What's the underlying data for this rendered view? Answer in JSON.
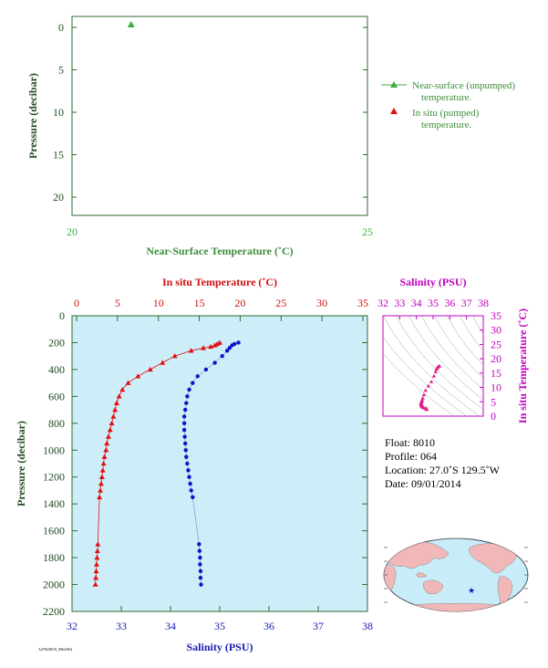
{
  "chart_data": [
    {
      "type": "scatter",
      "name_id": "near-surface",
      "xlabel": "Near-Surface Temperature (˚C)",
      "ylabel": "Pressure (decibar)",
      "xlim": [
        20,
        25
      ],
      "ylim": [
        0,
        22
      ],
      "xticks": [
        20,
        25
      ],
      "yticks": [
        0,
        5,
        10,
        15,
        20
      ],
      "series": [
        {
          "name": "Near-surface (unpumped)\ntemperature.",
          "color": "#3faf3f",
          "marker": "triangle",
          "points": [
            {
              "x": 21.0,
              "y": 0
            }
          ]
        }
      ]
    },
    {
      "type": "line",
      "name_id": "profile",
      "top_xlabel": "In situ Temperature (˚C)",
      "bottom_xlabel": "Salinity (PSU)",
      "ylabel": "Pressure (decibar)",
      "temp_lim": [
        0,
        35
      ],
      "temp_ticks": [
        0,
        5,
        10,
        15,
        20,
        25,
        30,
        35
      ],
      "sal_lim": [
        32,
        38
      ],
      "sal_ticks": [
        32,
        33,
        34,
        35,
        36,
        37,
        38
      ],
      "ylim": [
        0,
        2200
      ],
      "yticks": [
        0,
        200,
        400,
        600,
        800,
        1000,
        1200,
        1400,
        1600,
        1800,
        2000,
        2200
      ],
      "series": [
        {
          "name": "In situ (pumped)\ntemperature.",
          "color": "#e01010",
          "marker": "triangle",
          "pressure": [
            200,
            210,
            220,
            230,
            240,
            260,
            300,
            350,
            400,
            450,
            500,
            550,
            600,
            650,
            700,
            750,
            800,
            850,
            900,
            950,
            1000,
            1050,
            1100,
            1150,
            1200,
            1250,
            1300,
            1350,
            1700,
            1750,
            1800,
            1850,
            1900,
            1950,
            2000
          ],
          "temperature": [
            17.5,
            17.2,
            16.9,
            16.4,
            15.5,
            14.0,
            12.0,
            10.5,
            9.0,
            7.5,
            6.3,
            5.6,
            5.2,
            4.9,
            4.7,
            4.5,
            4.3,
            4.1,
            3.9,
            3.7,
            3.6,
            3.4,
            3.3,
            3.2,
            3.1,
            3.0,
            2.9,
            2.8,
            2.6,
            2.55,
            2.5,
            2.45,
            2.4,
            2.35,
            2.3
          ]
        },
        {
          "name": "Salinity",
          "color": "#1010c8",
          "marker": "circle",
          "pressure": [
            200,
            210,
            220,
            240,
            260,
            300,
            350,
            400,
            450,
            500,
            550,
            600,
            650,
            700,
            750,
            800,
            850,
            900,
            950,
            1000,
            1050,
            1100,
            1150,
            1200,
            1250,
            1300,
            1350,
            1700,
            1750,
            1800,
            1850,
            1900,
            1950,
            2000
          ],
          "salinity": [
            35.38,
            35.3,
            35.25,
            35.2,
            35.15,
            35.05,
            34.9,
            34.72,
            34.55,
            34.45,
            34.38,
            34.34,
            34.32,
            34.3,
            34.28,
            34.28,
            34.28,
            34.29,
            34.3,
            34.31,
            34.32,
            34.34,
            34.36,
            34.38,
            34.4,
            34.42,
            34.45,
            34.58,
            34.59,
            34.6,
            34.6,
            34.61,
            34.61,
            34.62
          ]
        }
      ]
    },
    {
      "type": "scatter",
      "name_id": "ts-diagram",
      "xlabel": "Salinity (PSU)",
      "ylabel": "In situ Temperature (˚C)",
      "xlim": [
        32,
        38
      ],
      "ylim": [
        0,
        35
      ],
      "xticks": [
        32,
        33,
        34,
        35,
        36,
        37,
        38
      ],
      "yticks": [
        0,
        5,
        10,
        15,
        20,
        25,
        30,
        35
      ],
      "color": "#e0208a"
    }
  ],
  "legend": {
    "near_surface": "Near-surface (unpumped)",
    "near_surface_2": "temperature.",
    "in_situ": "In situ (pumped)",
    "in_situ_2": "temperature."
  },
  "info": {
    "float": "Float:  8010",
    "profile": "Profile:  064",
    "location": "Location:  27.0˚S  129.5˚W",
    "date": "Date:  09/01/2014"
  },
  "map": {
    "marker_color": "#1010c8",
    "land_color": "#f0b8b8",
    "ocean_color": "#c8ecf8"
  },
  "footer": "A4784/8010_0064/064",
  "colors": {
    "panel_bg": "#cdeef8",
    "temp": "#e01010",
    "sal": "#1010c8",
    "ts": "#e0208a",
    "near": "#3faf3f",
    "mag": "#c000c0"
  }
}
